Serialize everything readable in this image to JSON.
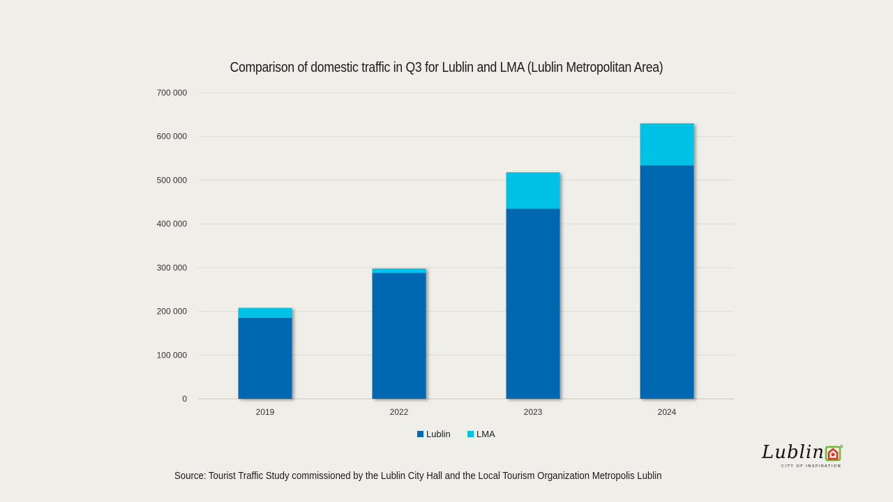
{
  "chart_data": {
    "type": "bar",
    "stacked": true,
    "title": "Comparison of domestic traffic in Q3 for Lublin and LMA (Lublin Metropolitan Area)",
    "categories": [
      "2019",
      "2022",
      "2023",
      "2024"
    ],
    "series": [
      {
        "name": "Lublin",
        "color": "#0568b0",
        "values": [
          185000,
          288000,
          435000,
          534000
        ]
      },
      {
        "name": "LMA",
        "color": "#00c2e6",
        "values": [
          23000,
          10000,
          83000,
          96000
        ]
      }
    ],
    "ylim": [
      0,
      700000
    ],
    "yticks": [
      0,
      100000,
      200000,
      300000,
      400000,
      500000,
      600000,
      700000
    ],
    "ytick_labels": [
      "0",
      "100 000",
      "200 000",
      "300 000",
      "400 000",
      "500 000",
      "600 000",
      "700 000"
    ],
    "grid": true,
    "legend": "bottom-center"
  },
  "source": "Source: Tourist Traffic Study commissioned by the Lublin City Hall and the Local Tourism Organization Metropolis Lublin",
  "logo": {
    "wordmark": "Lublin",
    "tagline": "CITY OF INSPIRATION"
  }
}
